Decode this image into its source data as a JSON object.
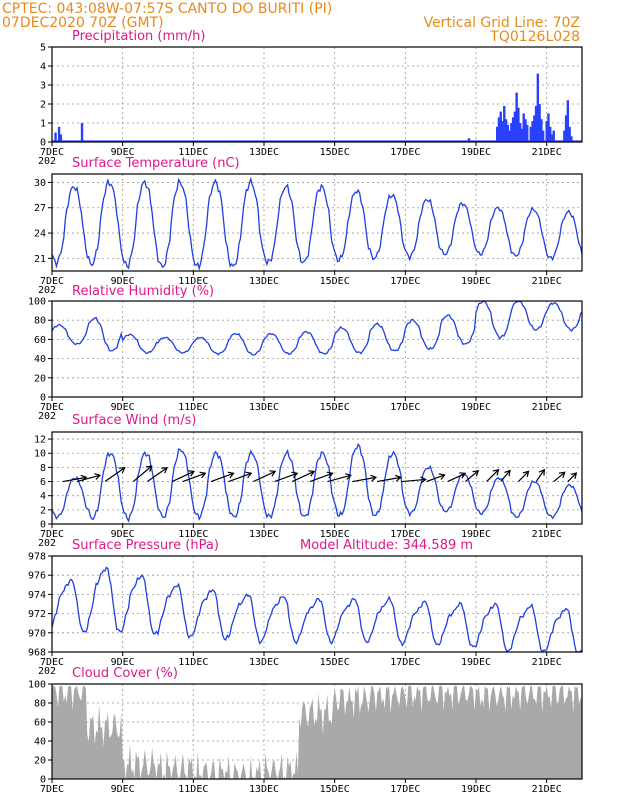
{
  "header": {
    "line1_left": "CPTEC:   043:08W-07:57S   CANTO DO BURITI (PI)",
    "line2_left": "07DEC2020 70Z (GMT)",
    "line2_right": "Vertical Grid Line: 70Z",
    "line3_right": "TQ0126L028"
  },
  "x_axis": {
    "tick_labels": [
      "7DEC",
      "9DEC",
      "11DEC",
      "13DEC",
      "15DEC",
      "17DEC",
      "19DEC",
      "21DEC"
    ],
    "tick_days": [
      0,
      2,
      4,
      6,
      8,
      10,
      12,
      14
    ],
    "xlim_days": [
      0,
      15
    ],
    "stub_label": "202"
  },
  "colors": {
    "line": "#1f3fe0",
    "bar": "#2a40ff",
    "cloud": "#a9a9a9",
    "title": "#e0188a",
    "header": "#e88a1a"
  },
  "chart_data": [
    {
      "type": "bar",
      "title": "Precipitation (mm/h)",
      "ylim": [
        0,
        5
      ],
      "yticks": [
        0,
        1,
        2,
        3,
        4,
        5
      ],
      "grid": true,
      "events": [
        [
          0.1,
          0.5
        ],
        [
          0.2,
          0.8
        ],
        [
          0.25,
          0.4
        ],
        [
          0.85,
          1.0
        ],
        [
          10.5,
          0.05
        ],
        [
          11.8,
          0.2
        ],
        [
          12.6,
          0.8
        ],
        [
          12.65,
          1.3
        ],
        [
          12.7,
          1.6
        ],
        [
          12.75,
          1.1
        ],
        [
          12.8,
          1.9
        ],
        [
          12.85,
          1.2
        ],
        [
          12.9,
          0.9
        ],
        [
          12.95,
          0.6
        ],
        [
          13.0,
          1.0
        ],
        [
          13.05,
          1.3
        ],
        [
          13.1,
          1.6
        ],
        [
          13.15,
          2.6
        ],
        [
          13.2,
          1.8
        ],
        [
          13.25,
          1.0
        ],
        [
          13.3,
          0.7
        ],
        [
          13.35,
          1.5
        ],
        [
          13.4,
          1.2
        ],
        [
          13.45,
          0.9
        ],
        [
          13.55,
          0.8
        ],
        [
          13.6,
          1.1
        ],
        [
          13.65,
          1.4
        ],
        [
          13.7,
          1.9
        ],
        [
          13.75,
          3.6
        ],
        [
          13.8,
          2.0
        ],
        [
          13.85,
          1.2
        ],
        [
          13.9,
          0.6
        ],
        [
          14.0,
          1.1
        ],
        [
          14.05,
          1.5
        ],
        [
          14.1,
          0.8
        ],
        [
          14.15,
          0.4
        ],
        [
          14.2,
          0.6
        ],
        [
          14.5,
          0.6
        ],
        [
          14.55,
          1.4
        ],
        [
          14.6,
          2.2
        ],
        [
          14.65,
          0.8
        ],
        [
          14.7,
          0.3
        ]
      ]
    },
    {
      "type": "line",
      "title": "Surface Temperature (nC)",
      "ylim": [
        19.5,
        31
      ],
      "yticks": [
        21,
        24,
        27,
        30
      ],
      "grid": true,
      "daily_max": [
        29.5,
        30,
        30,
        30,
        30,
        30,
        29.5,
        29.5,
        29,
        28.5,
        28,
        27.5,
        27,
        26.8,
        26.5
      ],
      "daily_min": [
        20.5,
        20.3,
        20.1,
        20,
        20,
        20,
        20.5,
        20.5,
        20.8,
        21,
        21.2,
        21.5,
        21.5,
        21.3,
        21
      ]
    },
    {
      "type": "line",
      "title": "Relative Humidity (%)",
      "ylim": [
        0,
        100
      ],
      "yticks": [
        0,
        20,
        40,
        60,
        80,
        100
      ],
      "grid": true,
      "daily_max": [
        75,
        82,
        65,
        62,
        62,
        66,
        66,
        68,
        72,
        76,
        80,
        85,
        100,
        100,
        98
      ],
      "daily_min": [
        55,
        48,
        46,
        46,
        45,
        44,
        45,
        45,
        46,
        48,
        50,
        55,
        62,
        70,
        70
      ]
    },
    {
      "type": "line",
      "title": "Surface Wind (m/s)",
      "ylim": [
        0,
        13
      ],
      "yticks": [
        0,
        2,
        4,
        6,
        8,
        10,
        12
      ],
      "grid": true,
      "daily_max": [
        6.5,
        10,
        10,
        10.5,
        10,
        10,
        10,
        10,
        11,
        10,
        8,
        7,
        6.5,
        6,
        5.5
      ],
      "daily_min": [
        1,
        0.8,
        0.8,
        1,
        1,
        1,
        1,
        1,
        1.2,
        1.2,
        1.5,
        1.8,
        1.5,
        1,
        1
      ],
      "vectors": [
        [
          0.3,
          260,
          1.0
        ],
        [
          0.7,
          255,
          1.0
        ],
        [
          1.5,
          235,
          1.0
        ],
        [
          2.3,
          230,
          1.0
        ],
        [
          2.7,
          235,
          1.0
        ],
        [
          3.4,
          245,
          1.0
        ],
        [
          3.7,
          250,
          1.0
        ],
        [
          4.5,
          250,
          1.0
        ],
        [
          5.0,
          250,
          1.0
        ],
        [
          5.7,
          245,
          1.0
        ],
        [
          6.3,
          250,
          1.0
        ],
        [
          6.8,
          245,
          1.0
        ],
        [
          7.3,
          250,
          1.0
        ],
        [
          7.8,
          255,
          1.0
        ],
        [
          8.5,
          260,
          1.0
        ],
        [
          9.2,
          260,
          1.0
        ],
        [
          9.9,
          265,
          1.0
        ],
        [
          10.6,
          250,
          0.8
        ],
        [
          11.2,
          245,
          0.8
        ],
        [
          11.7,
          230,
          0.7
        ],
        [
          12.3,
          225,
          0.7
        ],
        [
          12.7,
          220,
          0.6
        ],
        [
          13.2,
          225,
          0.6
        ],
        [
          13.7,
          215,
          0.6
        ],
        [
          14.2,
          230,
          0.6
        ],
        [
          14.6,
          225,
          0.5
        ]
      ]
    },
    {
      "type": "line",
      "title": "Surface Pressure (hPa)",
      "annotation": "Model Altitude: 344.589 m",
      "ylim": [
        968,
        978
      ],
      "yticks": [
        968,
        970,
        972,
        974,
        976,
        978
      ],
      "grid": true,
      "daily_max": [
        975.5,
        976.8,
        976,
        975,
        974.5,
        974,
        973.8,
        973.5,
        973.5,
        973.5,
        973.2,
        973,
        973,
        972.8,
        972.5
      ],
      "daily_min": [
        970.5,
        970.5,
        970.3,
        970,
        969.8,
        969.5,
        969.5,
        969.5,
        969.5,
        969.3,
        969.2,
        969,
        968.5,
        968.5,
        968.2
      ]
    },
    {
      "type": "area",
      "title": "Cloud Cover (%)",
      "ylim": [
        0,
        100
      ],
      "yticks": [
        0,
        20,
        40,
        60,
        80,
        100
      ],
      "grid": true,
      "daily_level": [
        94,
        55,
        15,
        10,
        6,
        3,
        8,
        70,
        85,
        90,
        92,
        93,
        90,
        92,
        92
      ]
    }
  ]
}
